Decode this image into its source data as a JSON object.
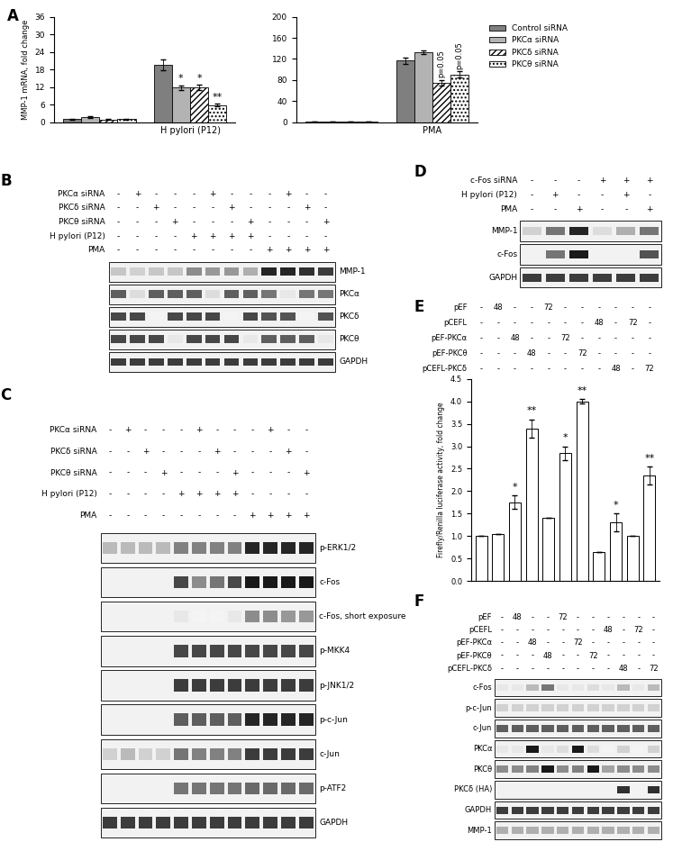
{
  "chart_data": [
    {
      "type": "bar",
      "label": "A",
      "ylabel": "MMP-1 mRNA, fold change",
      "categories": [
        null,
        "H pylori (P12)"
      ],
      "ylim": [
        0,
        36
      ],
      "yticks": [
        0,
        6,
        12,
        18,
        24,
        30,
        36
      ],
      "series": [
        {
          "name": "Control siRNA",
          "color": "#7f7f7f",
          "values": [
            1.0,
            19.5
          ],
          "errors": [
            0.2,
            1.8
          ],
          "annotations": [
            null,
            null
          ]
        },
        {
          "name": "PKCα siRNA",
          "color": "#b3b3b3",
          "values": [
            1.7,
            11.8
          ],
          "errors": [
            0.3,
            0.8
          ],
          "annotations": [
            null,
            "*"
          ]
        },
        {
          "name": "PKCδ siRNA",
          "color": "#ffffff",
          "values": [
            0.9,
            11.9
          ],
          "errors": [
            0.1,
            0.9
          ],
          "annotations": [
            null,
            "*"
          ]
        },
        {
          "name": "PKCθ siRNA",
          "color": "#ffffff",
          "values": [
            1.0,
            5.8
          ],
          "errors": [
            0.1,
            0.4
          ],
          "annotations": [
            null,
            "**"
          ]
        }
      ]
    },
    {
      "type": "bar",
      "categories": [
        null,
        "PMA"
      ],
      "ylim": [
        0,
        200
      ],
      "yticks": [
        0,
        40,
        80,
        120,
        160,
        200
      ],
      "legend": "upper left",
      "series": [
        {
          "name": "Control siRNA",
          "color": "#7f7f7f",
          "values": [
            1.0,
            117
          ],
          "errors": [
            0.2,
            6
          ],
          "annotations": [
            null,
            null
          ]
        },
        {
          "name": "PKCα siRNA",
          "color": "#b3b3b3",
          "values": [
            1.0,
            133
          ],
          "errors": [
            0.2,
            4
          ],
          "annotations": [
            null,
            null
          ]
        },
        {
          "name": "PKCδ siRNA",
          "color": "#ffffff",
          "values": [
            1.0,
            75
          ],
          "errors": [
            0.2,
            5
          ],
          "annotations": [
            null,
            "p=0.05"
          ]
        },
        {
          "name": "PKCθ siRNA",
          "color": "#ffffff",
          "values": [
            1.0,
            90
          ],
          "errors": [
            0.2,
            6
          ],
          "annotations": [
            null,
            "p=0.05"
          ]
        }
      ]
    },
    {
      "type": "bar",
      "label": "E",
      "ylabel": "Firefly/Renilla luciferase activity, fold change",
      "categories": [
        null,
        null,
        null,
        null,
        null,
        null,
        null,
        null,
        null,
        null,
        null
      ],
      "tick_labels": "y",
      "color": "#ffffff",
      "ylim": [
        0,
        4.5
      ],
      "yticks": [
        {
          "value": 0,
          "label": "0.0"
        },
        {
          "value": 0.5,
          "label": "0.5"
        },
        {
          "value": 1,
          "label": "1.0"
        },
        {
          "value": 1.5,
          "label": "1.5"
        },
        {
          "value": 2,
          "label": "2.0"
        },
        {
          "value": 2.5,
          "label": "2.5"
        },
        {
          "value": 3,
          "label": "3.0"
        },
        {
          "value": 3.5,
          "label": "3.5"
        },
        {
          "value": 4,
          "label": "4.0"
        },
        {
          "value": 4.5,
          "label": "4.5"
        }
      ],
      "values": [
        1.0,
        1.05,
        1.75,
        3.4,
        1.4,
        2.85,
        4.0,
        0.65,
        1.3,
        1.0,
        2.35
      ],
      "errors": [
        0,
        0,
        0.15,
        0.2,
        0,
        0.15,
        0.05,
        0,
        0.2,
        0,
        0.2
      ],
      "annotations": [
        null,
        null,
        "*",
        "**",
        null,
        "*",
        "**",
        null,
        "*",
        null,
        "**"
      ],
      "conditions": [
        {
          "name": "pEF",
          "marks": [
            "-",
            "48",
            "-",
            "-",
            "72",
            "-",
            "-",
            "-",
            "-",
            "-",
            "-"
          ]
        },
        {
          "name": "pCEFL",
          "marks": [
            "-",
            "-",
            "-",
            "-",
            "-",
            "-",
            "-",
            "48",
            "-",
            "72",
            "-"
          ]
        },
        {
          "name": "pEF-PKCα",
          "marks": [
            "-",
            "-",
            "48",
            "-",
            "-",
            "72",
            "-",
            "-",
            "-",
            "-",
            "-"
          ]
        },
        {
          "name": "pEF-PKCθ",
          "marks": [
            "-",
            "-",
            "-",
            "48",
            "-",
            "-",
            "72",
            "-",
            "-",
            "-",
            "-"
          ]
        },
        {
          "name": "pCEFL-PKCδ",
          "marks": [
            "-",
            "-",
            "-",
            "-",
            "-",
            "-",
            "-",
            "-",
            "48",
            "-",
            "72"
          ]
        }
      ]
    }
  ],
  "blots": [
    {
      "label": "B",
      "conditions": [
        {
          "name": "PKCα siRNA",
          "marks": [
            "-",
            "+",
            "-",
            "-",
            "-",
            "+",
            "-",
            "-",
            "-",
            "+",
            "-",
            "-"
          ]
        },
        {
          "name": "PKCδ siRNA",
          "marks": [
            "-",
            "-",
            "+",
            "-",
            "-",
            "-",
            "+",
            "-",
            "-",
            "-",
            "+",
            "-"
          ]
        },
        {
          "name": "PKCθ siRNA",
          "marks": [
            "-",
            "-",
            "-",
            "+",
            "-",
            "-",
            "-",
            "+",
            "-",
            "-",
            "-",
            "+"
          ]
        },
        {
          "name": "H pylori (P12)",
          "marks": [
            "-",
            "-",
            "-",
            "-",
            "+",
            "+",
            "+",
            "+",
            "-",
            "-",
            "-",
            "-"
          ]
        },
        {
          "name": "PMA",
          "marks": [
            "-",
            "-",
            "-",
            "-",
            "-",
            "-",
            "-",
            "-",
            "+",
            "+",
            "+",
            "+"
          ]
        }
      ],
      "bands": [
        {
          "name": "MMP-1",
          "intensity": [
            0.25,
            0.2,
            0.25,
            0.25,
            0.5,
            0.45,
            0.45,
            0.35,
            0.95,
            0.95,
            0.9,
            0.85
          ]
        },
        {
          "name": "PKCα",
          "intensity": [
            0.7,
            0.15,
            0.7,
            0.7,
            0.7,
            0.15,
            0.7,
            0.7,
            0.6,
            0.1,
            0.6,
            0.6
          ]
        },
        {
          "name": "PKCδ",
          "intensity": [
            0.8,
            0.8,
            0.05,
            0.8,
            0.8,
            0.8,
            0.05,
            0.8,
            0.75,
            0.75,
            0.05,
            0.75
          ]
        },
        {
          "name": "PKCθ",
          "intensity": [
            0.8,
            0.8,
            0.8,
            0.1,
            0.8,
            0.8,
            0.8,
            0.1,
            0.7,
            0.7,
            0.7,
            0.1
          ]
        },
        {
          "name": "GAPDH",
          "intensity": [
            0.85,
            0.85,
            0.85,
            0.85,
            0.85,
            0.85,
            0.85,
            0.85,
            0.85,
            0.85,
            0.85,
            0.85
          ]
        }
      ]
    },
    {
      "label": "C",
      "conditions": [
        {
          "name": "PKCα siRNA",
          "marks": [
            "-",
            "+",
            "-",
            "-",
            "-",
            "+",
            "-",
            "-",
            "-",
            "+",
            "-",
            "-"
          ]
        },
        {
          "name": "PKCδ siRNA",
          "marks": [
            "-",
            "-",
            "+",
            "-",
            "-",
            "-",
            "+",
            "-",
            "-",
            "-",
            "+",
            "-"
          ]
        },
        {
          "name": "PKCθ siRNA",
          "marks": [
            "-",
            "-",
            "-",
            "+",
            "-",
            "-",
            "-",
            "+",
            "-",
            "-",
            "-",
            "+"
          ]
        },
        {
          "name": "H pylori (P12)",
          "marks": [
            "-",
            "-",
            "-",
            "-",
            "+",
            "+",
            "+",
            "+",
            "-",
            "-",
            "-",
            "-"
          ]
        },
        {
          "name": "PMA",
          "marks": [
            "-",
            "-",
            "-",
            "-",
            "-",
            "-",
            "-",
            "-",
            "+",
            "+",
            "+",
            "+"
          ]
        }
      ],
      "bands": [
        {
          "name": "p-ERK1/2",
          "intensity": [
            0.3,
            0.3,
            0.3,
            0.3,
            0.55,
            0.55,
            0.55,
            0.55,
            0.95,
            0.95,
            0.95,
            0.95
          ]
        },
        {
          "name": "c-Fos",
          "intensity": [
            0,
            0,
            0,
            0,
            0.8,
            0.5,
            0.6,
            0.8,
            1,
            1,
            1,
            1
          ]
        },
        {
          "name": "c-Fos, short exposure",
          "intensity": [
            0,
            0,
            0,
            0,
            0.1,
            0.05,
            0.05,
            0.1,
            0.5,
            0.5,
            0.45,
            0.45
          ]
        },
        {
          "name": "p-MKK4",
          "intensity": [
            0,
            0,
            0,
            0,
            0.8,
            0.8,
            0.8,
            0.8,
            0.8,
            0.8,
            0.8,
            0.8
          ]
        },
        {
          "name": "p-JNK1/2",
          "intensity": [
            0,
            0,
            0,
            0,
            0.85,
            0.85,
            0.85,
            0.85,
            0.85,
            0.85,
            0.85,
            0.85
          ]
        },
        {
          "name": "p-c-Jun",
          "intensity": [
            0,
            0,
            0,
            0,
            0.7,
            0.7,
            0.7,
            0.7,
            0.95,
            0.95,
            0.95,
            0.95
          ]
        },
        {
          "name": "c-Jun",
          "intensity": [
            0.2,
            0.3,
            0.2,
            0.2,
            0.6,
            0.55,
            0.55,
            0.55,
            0.85,
            0.85,
            0.85,
            0.85
          ]
        },
        {
          "name": "p-ATF2",
          "intensity": [
            0,
            0,
            0,
            0,
            0.6,
            0.6,
            0.6,
            0.6,
            0.65,
            0.65,
            0.65,
            0.65
          ]
        },
        {
          "name": "GAPDH",
          "intensity": [
            0.85,
            0.85,
            0.85,
            0.85,
            0.85,
            0.85,
            0.85,
            0.85,
            0.85,
            0.85,
            0.85,
            0.85
          ]
        }
      ]
    },
    {
      "label": "D",
      "conditions": [
        {
          "name": "c-Fos siRNA",
          "marks": [
            "-",
            "-",
            "-",
            "+",
            "+",
            "+"
          ]
        },
        {
          "name": "H pylori (P12)",
          "marks": [
            "-",
            "+",
            "-",
            "-",
            "+",
            "-"
          ]
        },
        {
          "name": "PMA",
          "marks": [
            "-",
            "-",
            "+",
            "-",
            "-",
            "+"
          ]
        }
      ],
      "bands": [
        {
          "name": "MMP-1",
          "intensity": [
            0.2,
            0.6,
            0.95,
            0.15,
            0.35,
            0.6
          ]
        },
        {
          "name": "c-Fos",
          "intensity": [
            0,
            0.6,
            1,
            0,
            0,
            0.75
          ]
        },
        {
          "name": "GAPDH",
          "intensity": [
            0.85,
            0.85,
            0.85,
            0.85,
            0.85,
            0.85
          ]
        }
      ]
    },
    {
      "label": "F",
      "conditions": [
        {
          "name": "pEF",
          "marks": [
            "-",
            "48",
            "-",
            "-",
            "72",
            "-",
            "-",
            "-",
            "-",
            "-",
            "-"
          ]
        },
        {
          "name": "pCEFL",
          "marks": [
            "-",
            "-",
            "-",
            "-",
            "-",
            "-",
            "-",
            "48",
            "-",
            "72",
            "-"
          ]
        },
        {
          "name": "pEF-PKCα",
          "marks": [
            "-",
            "-",
            "48",
            "-",
            "-",
            "72",
            "-",
            "-",
            "-",
            "-",
            "-"
          ]
        },
        {
          "name": "pEF-PKCθ",
          "marks": [
            "-",
            "-",
            "-",
            "48",
            "-",
            "-",
            "72",
            "-",
            "-",
            "-",
            "-"
          ]
        },
        {
          "name": "pCEFL-PKCδ",
          "marks": [
            "-",
            "-",
            "-",
            "-",
            "-",
            "-",
            "-",
            "-",
            "48",
            "-",
            "72"
          ]
        }
      ],
      "bands": [
        {
          "name": "c-Fos",
          "intensity": [
            0.1,
            0.1,
            0.3,
            0.6,
            0.1,
            0.1,
            0.15,
            0.1,
            0.3,
            0.1,
            0.3
          ]
        },
        {
          "name": "p-c-Jun",
          "intensity": [
            0.2,
            0.2,
            0.2,
            0.2,
            0.2,
            0.2,
            0.2,
            0.2,
            0.2,
            0.2,
            0.2
          ]
        },
        {
          "name": "c-Jun",
          "intensity": [
            0.7,
            0.7,
            0.7,
            0.7,
            0.7,
            0.7,
            0.7,
            0.7,
            0.7,
            0.7,
            0.7
          ]
        },
        {
          "name": "PKCα",
          "intensity": [
            0.1,
            0.1,
            1.0,
            0.1,
            0.15,
            1.0,
            0.15,
            0.05,
            0.2,
            0.05,
            0.2
          ]
        },
        {
          "name": "PKCθ",
          "intensity": [
            0.5,
            0.5,
            0.55,
            1.0,
            0.5,
            0.55,
            1.0,
            0.4,
            0.5,
            0.5,
            0.5
          ]
        },
        {
          "name": "PKCδ (HA)",
          "intensity": [
            0,
            0,
            0,
            0,
            0,
            0,
            0,
            0,
            0.9,
            0,
            0.9
          ]
        },
        {
          "name": "GAPDH",
          "intensity": [
            0.85,
            0.85,
            0.85,
            0.85,
            0.85,
            0.85,
            0.85,
            0.85,
            0.85,
            0.85,
            0.85
          ]
        },
        {
          "name": "MMP-1",
          "intensity": [
            0.35,
            0.35,
            0.35,
            0.35,
            0.35,
            0.35,
            0.35,
            0.35,
            0.35,
            0.35,
            0.35
          ]
        }
      ]
    }
  ]
}
